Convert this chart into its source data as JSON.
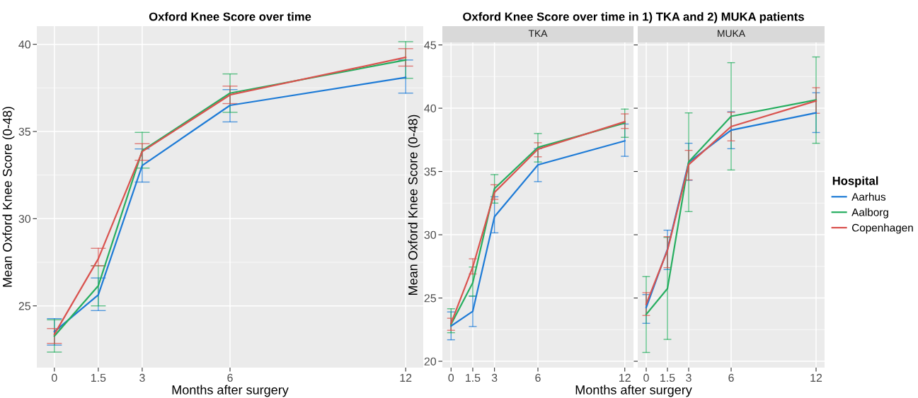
{
  "chart_data": [
    {
      "type": "line",
      "title": "Oxford Knee Score over time",
      "xlabel": "Months after surgery",
      "ylabel": "Mean Oxford Knee Score (0-48)",
      "x": [
        0,
        1.5,
        3,
        6,
        12
      ],
      "xlim": [
        -0.6,
        12.6
      ],
      "xticks": [
        0,
        1.5,
        3,
        6,
        12
      ],
      "ylim": [
        21.46,
        41.04
      ],
      "yticks": [
        25,
        30,
        35,
        40
      ],
      "grid": true,
      "legend": false,
      "marker": "none",
      "line_style": "solid",
      "series": [
        {
          "color": "#1e7bd6",
          "values": [
            23.52,
            25.63,
            33.05,
            36.5,
            38.1
          ],
          "errors": [
            [
              22.75,
              24.27
            ],
            [
              24.73,
              26.6
            ],
            [
              32.1,
              34.0
            ],
            [
              35.55,
              37.4
            ],
            [
              37.2,
              39.1
            ]
          ]
        },
        {
          "color": "#27ae60",
          "values": [
            23.27,
            26.15,
            33.9,
            37.2,
            39.1
          ],
          "errors": [
            [
              22.35,
              24.2
            ],
            [
              25.0,
              27.3
            ],
            [
              32.9,
              34.95
            ],
            [
              36.1,
              38.3
            ],
            [
              38.05,
              40.15
            ]
          ]
        },
        {
          "color": "#d9534f",
          "values": [
            23.37,
            27.7,
            33.85,
            37.1,
            39.25
          ],
          "errors": [
            [
              22.85,
              23.7
            ],
            [
              27.3,
              28.3
            ],
            [
              33.35,
              34.3
            ],
            [
              36.6,
              37.6
            ],
            [
              38.75,
              39.75
            ]
          ]
        }
      ]
    },
    {
      "type": "line",
      "title": "Oxford Knee Score over time in 1) TKA and 2) MUKA patients",
      "subtitle": "TKA",
      "xlabel": "Months after surgery",
      "ylabel": "Mean Oxford Knee Score (0-48)",
      "x": [
        0,
        1.5,
        3,
        6,
        12
      ],
      "xlim": [
        -0.6,
        12.6
      ],
      "xticks": [
        0,
        1.5,
        3,
        6,
        12
      ],
      "ylim": [
        19.5,
        45.2
      ],
      "yticks": [
        20,
        25,
        30,
        35,
        40,
        45
      ],
      "grid": true,
      "legend": false,
      "marker": "none",
      "line_style": "solid",
      "series": [
        {
          "color": "#1e7bd6",
          "values": [
            22.79,
            23.95,
            31.43,
            35.52,
            37.42
          ],
          "errors": [
            [
              21.7,
              23.9
            ],
            [
              22.75,
              25.15
            ],
            [
              30.15,
              33.0
            ],
            [
              34.2,
              36.8
            ],
            [
              36.2,
              38.75
            ]
          ]
        },
        {
          "color": "#27ae60",
          "values": [
            22.92,
            26.2,
            33.65,
            36.9,
            38.83
          ],
          "errors": [
            [
              22.26,
              24.15
            ],
            [
              25.15,
              27.45
            ],
            [
              32.5,
              34.75
            ],
            [
              35.75,
              38.0
            ],
            [
              37.7,
              39.93
            ]
          ]
        },
        {
          "color": "#d9534f",
          "values": [
            23.0,
            27.45,
            33.35,
            36.76,
            38.93
          ],
          "errors": [
            [
              22.45,
              23.4
            ],
            [
              26.9,
              28.1
            ],
            [
              32.8,
              33.95
            ],
            [
              36.16,
              37.27
            ],
            [
              38.4,
              39.55
            ]
          ]
        }
      ]
    },
    {
      "type": "line",
      "subtitle": "MUKA",
      "x": [
        0,
        1.5,
        3,
        6,
        12
      ],
      "xlim": [
        -0.6,
        12.6
      ],
      "xticks": [
        0,
        1.5,
        3,
        6,
        12
      ],
      "ylim": [
        19.5,
        45.2
      ],
      "yticks": [
        20,
        25,
        30,
        35,
        40,
        45
      ],
      "tick_labels": "x",
      "grid": true,
      "legend": "right",
      "legend_title": "Hospital",
      "marker": "none",
      "line_style": "solid",
      "series": [
        {
          "name": "Aarhus",
          "color": "#1e7bd6",
          "values": [
            24.24,
            28.85,
            35.72,
            38.27,
            39.64
          ],
          "errors": [
            [
              23.0,
              25.27
            ],
            [
              27.25,
              30.36
            ],
            [
              34.31,
              37.23
            ],
            [
              36.8,
              39.72
            ],
            [
              38.08,
              41.22
            ]
          ]
        },
        {
          "name": "Aalborg",
          "color": "#27ae60",
          "values": [
            23.71,
            25.74,
            35.76,
            39.36,
            40.66
          ],
          "errors": [
            [
              20.7,
              26.69
            ],
            [
              21.73,
              29.79
            ],
            [
              31.83,
              39.63
            ],
            [
              35.12,
              43.6
            ],
            [
              37.23,
              44.05
            ]
          ]
        },
        {
          "name": "Copenhagen",
          "color": "#d9534f",
          "values": [
            24.52,
            28.76,
            35.54,
            38.55,
            40.58
          ],
          "errors": [
            [
              23.62,
              25.42
            ],
            [
              27.4,
              29.85
            ],
            [
              34.33,
              36.67
            ],
            [
              37.42,
              39.68
            ],
            [
              39.6,
              41.62
            ]
          ]
        }
      ]
    }
  ]
}
